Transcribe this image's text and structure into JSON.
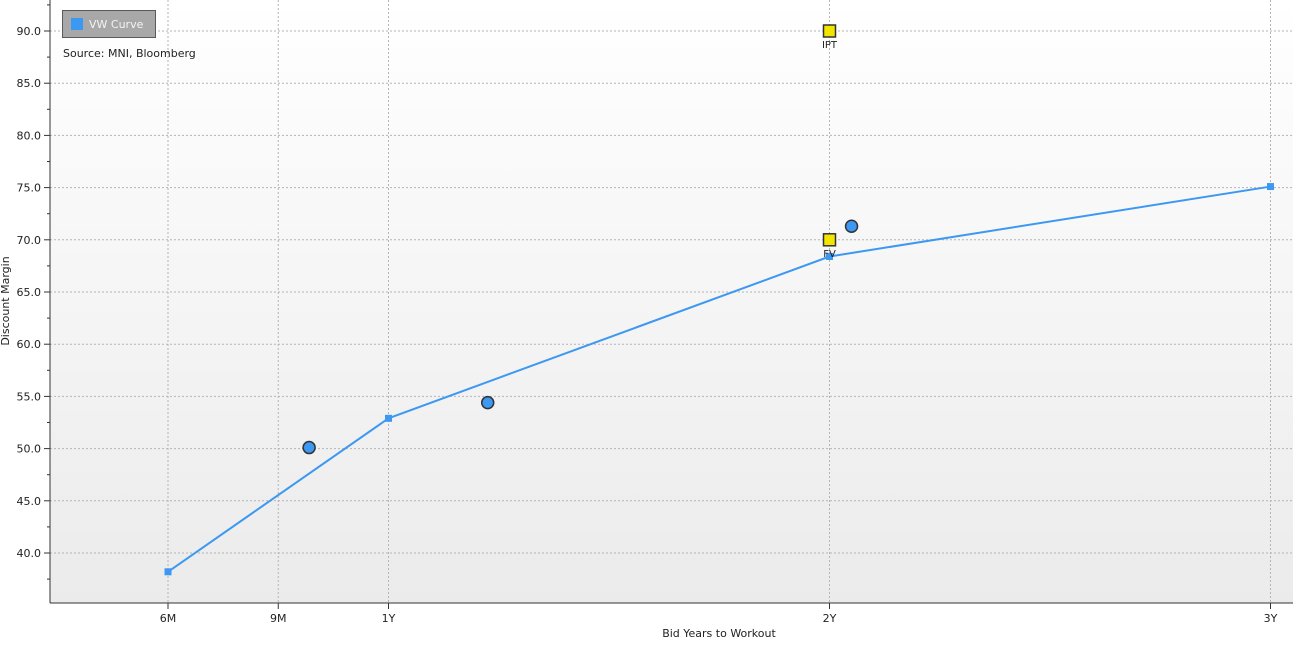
{
  "chart_data": {
    "type": "line",
    "xlabel": "Bid Years to Workout",
    "ylabel": "Discount Margin",
    "xlim": [
      0.3,
      3.05
    ],
    "ylim": [
      35,
      92.5
    ],
    "x_ticks": [
      {
        "value": 0.5,
        "label": "6M"
      },
      {
        "value": 0.75,
        "label": "9M"
      },
      {
        "value": 1.0,
        "label": "1Y"
      },
      {
        "value": 2.0,
        "label": "2Y"
      },
      {
        "value": 3.0,
        "label": "3Y"
      }
    ],
    "y_ticks": [
      40.0,
      45.0,
      50.0,
      55.0,
      60.0,
      65.0,
      70.0,
      75.0,
      80.0,
      85.0,
      90.0
    ],
    "y_tick_labels": [
      "40.0",
      "45.0",
      "50.0",
      "55.0",
      "60.0",
      "65.0",
      "70.0",
      "75.0",
      "80.0",
      "85.0",
      "90.0"
    ],
    "grid": true,
    "legend": {
      "position": "top-left",
      "label": "VW Curve",
      "color": "#3d98f2"
    },
    "source": "Source: MNI, Bloomberg",
    "series": [
      {
        "name": "VW Curve",
        "color": "#3d98f2",
        "points": [
          {
            "x": 0.5,
            "y": 38.2
          },
          {
            "x": 1.0,
            "y": 52.9
          },
          {
            "x": 2.0,
            "y": 68.4
          },
          {
            "x": 3.0,
            "y": 75.1
          }
        ]
      }
    ],
    "bonds": {
      "color": "#3d98f2",
      "points": [
        {
          "x": 0.82,
          "y": 50.1
        },
        {
          "x": 1.225,
          "y": 54.4
        },
        {
          "x": 2.05,
          "y": 71.3
        }
      ]
    },
    "guidance": {
      "color": "#f2e600",
      "points": [
        {
          "x": 2.0,
          "y": 90.0,
          "label": "IPT"
        },
        {
          "x": 2.0,
          "y": 70.0,
          "label": "FV"
        }
      ]
    }
  }
}
